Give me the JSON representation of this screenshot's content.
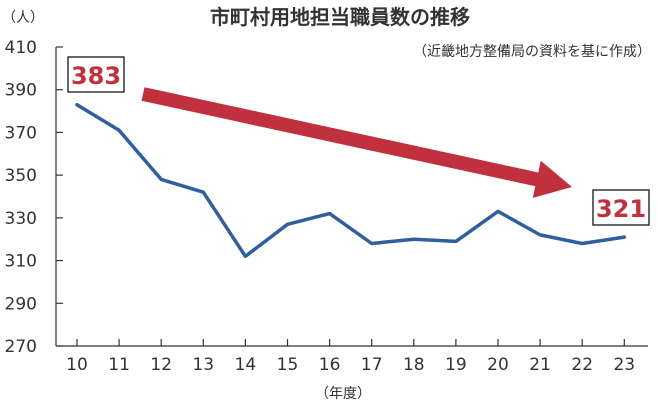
{
  "chart_data": {
    "type": "line",
    "title": "市町村用地担当職員数の推移",
    "subtitle": "（近畿地方整備局の資料を基に作成）",
    "ylabel": "（人）",
    "xlabel": "（年度）",
    "x": [
      "10",
      "11",
      "12",
      "13",
      "14",
      "15",
      "16",
      "17",
      "18",
      "19",
      "20",
      "21",
      "22",
      "23"
    ],
    "series": [
      {
        "values": [
          383,
          371,
          348,
          342,
          312,
          327,
          332,
          318,
          320,
          319,
          333,
          322,
          318,
          321
        ]
      }
    ],
    "ylim": [
      270,
      410
    ],
    "yticks": [
      410,
      390,
      370,
      350,
      330,
      310,
      290,
      270
    ],
    "grid": false,
    "annotations": [
      {
        "text": "383",
        "x": "10",
        "y": 383
      },
      {
        "text": "321",
        "x": "23",
        "y": 321
      }
    ],
    "trend_arrow": true
  },
  "colors": {
    "line": "#2f5f9f",
    "arrow": "#c0313d",
    "callout_text": "#c0313d",
    "callout_border": "#333333",
    "axis": "#333333",
    "text": "#333333"
  }
}
